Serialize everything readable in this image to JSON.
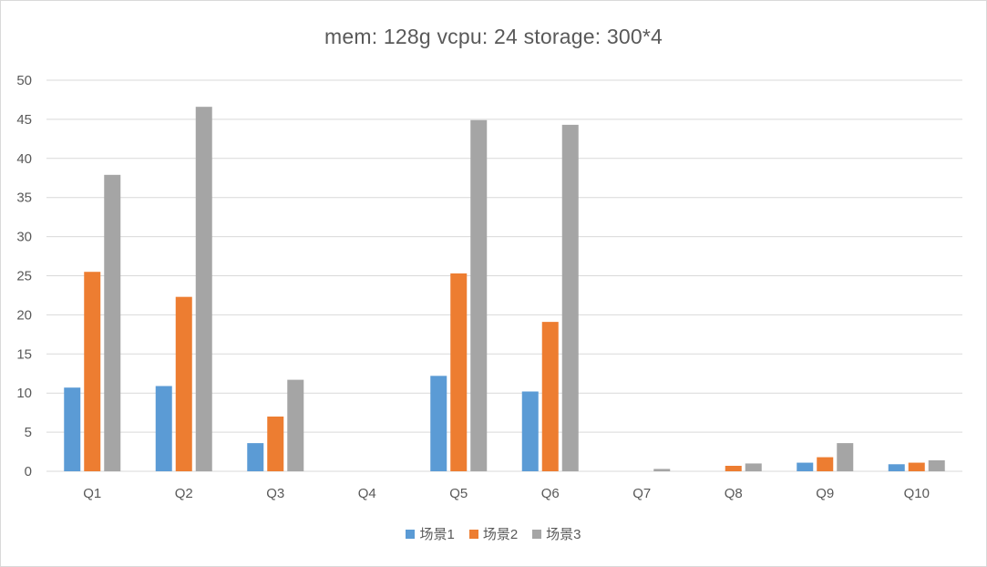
{
  "chart_data": {
    "type": "bar",
    "title": "mem: 128g vcpu: 24 storage: 300*4",
    "xlabel": "",
    "ylabel": "",
    "ylim": [
      0,
      50
    ],
    "yticks": [
      0,
      5,
      10,
      15,
      20,
      25,
      30,
      35,
      40,
      45,
      50
    ],
    "grid": true,
    "legend_position": "bottom",
    "categories": [
      "Q1",
      "Q2",
      "Q3",
      "Q4",
      "Q5",
      "Q6",
      "Q7",
      "Q8",
      "Q9",
      "Q10"
    ],
    "series": [
      {
        "name": "场景1",
        "color": "#5b9bd5",
        "values": [
          10.7,
          10.9,
          3.6,
          0,
          12.2,
          10.2,
          0,
          0,
          1.1,
          0.9
        ]
      },
      {
        "name": "场景2",
        "color": "#ed7d31",
        "values": [
          25.5,
          22.3,
          7.0,
          0,
          25.3,
          19.1,
          0,
          0.7,
          1.8,
          1.1
        ]
      },
      {
        "name": "场景3",
        "color": "#a5a5a5",
        "values": [
          37.9,
          46.6,
          11.7,
          0,
          44.9,
          44.3,
          0.3,
          1.0,
          3.6,
          1.4
        ]
      }
    ]
  }
}
